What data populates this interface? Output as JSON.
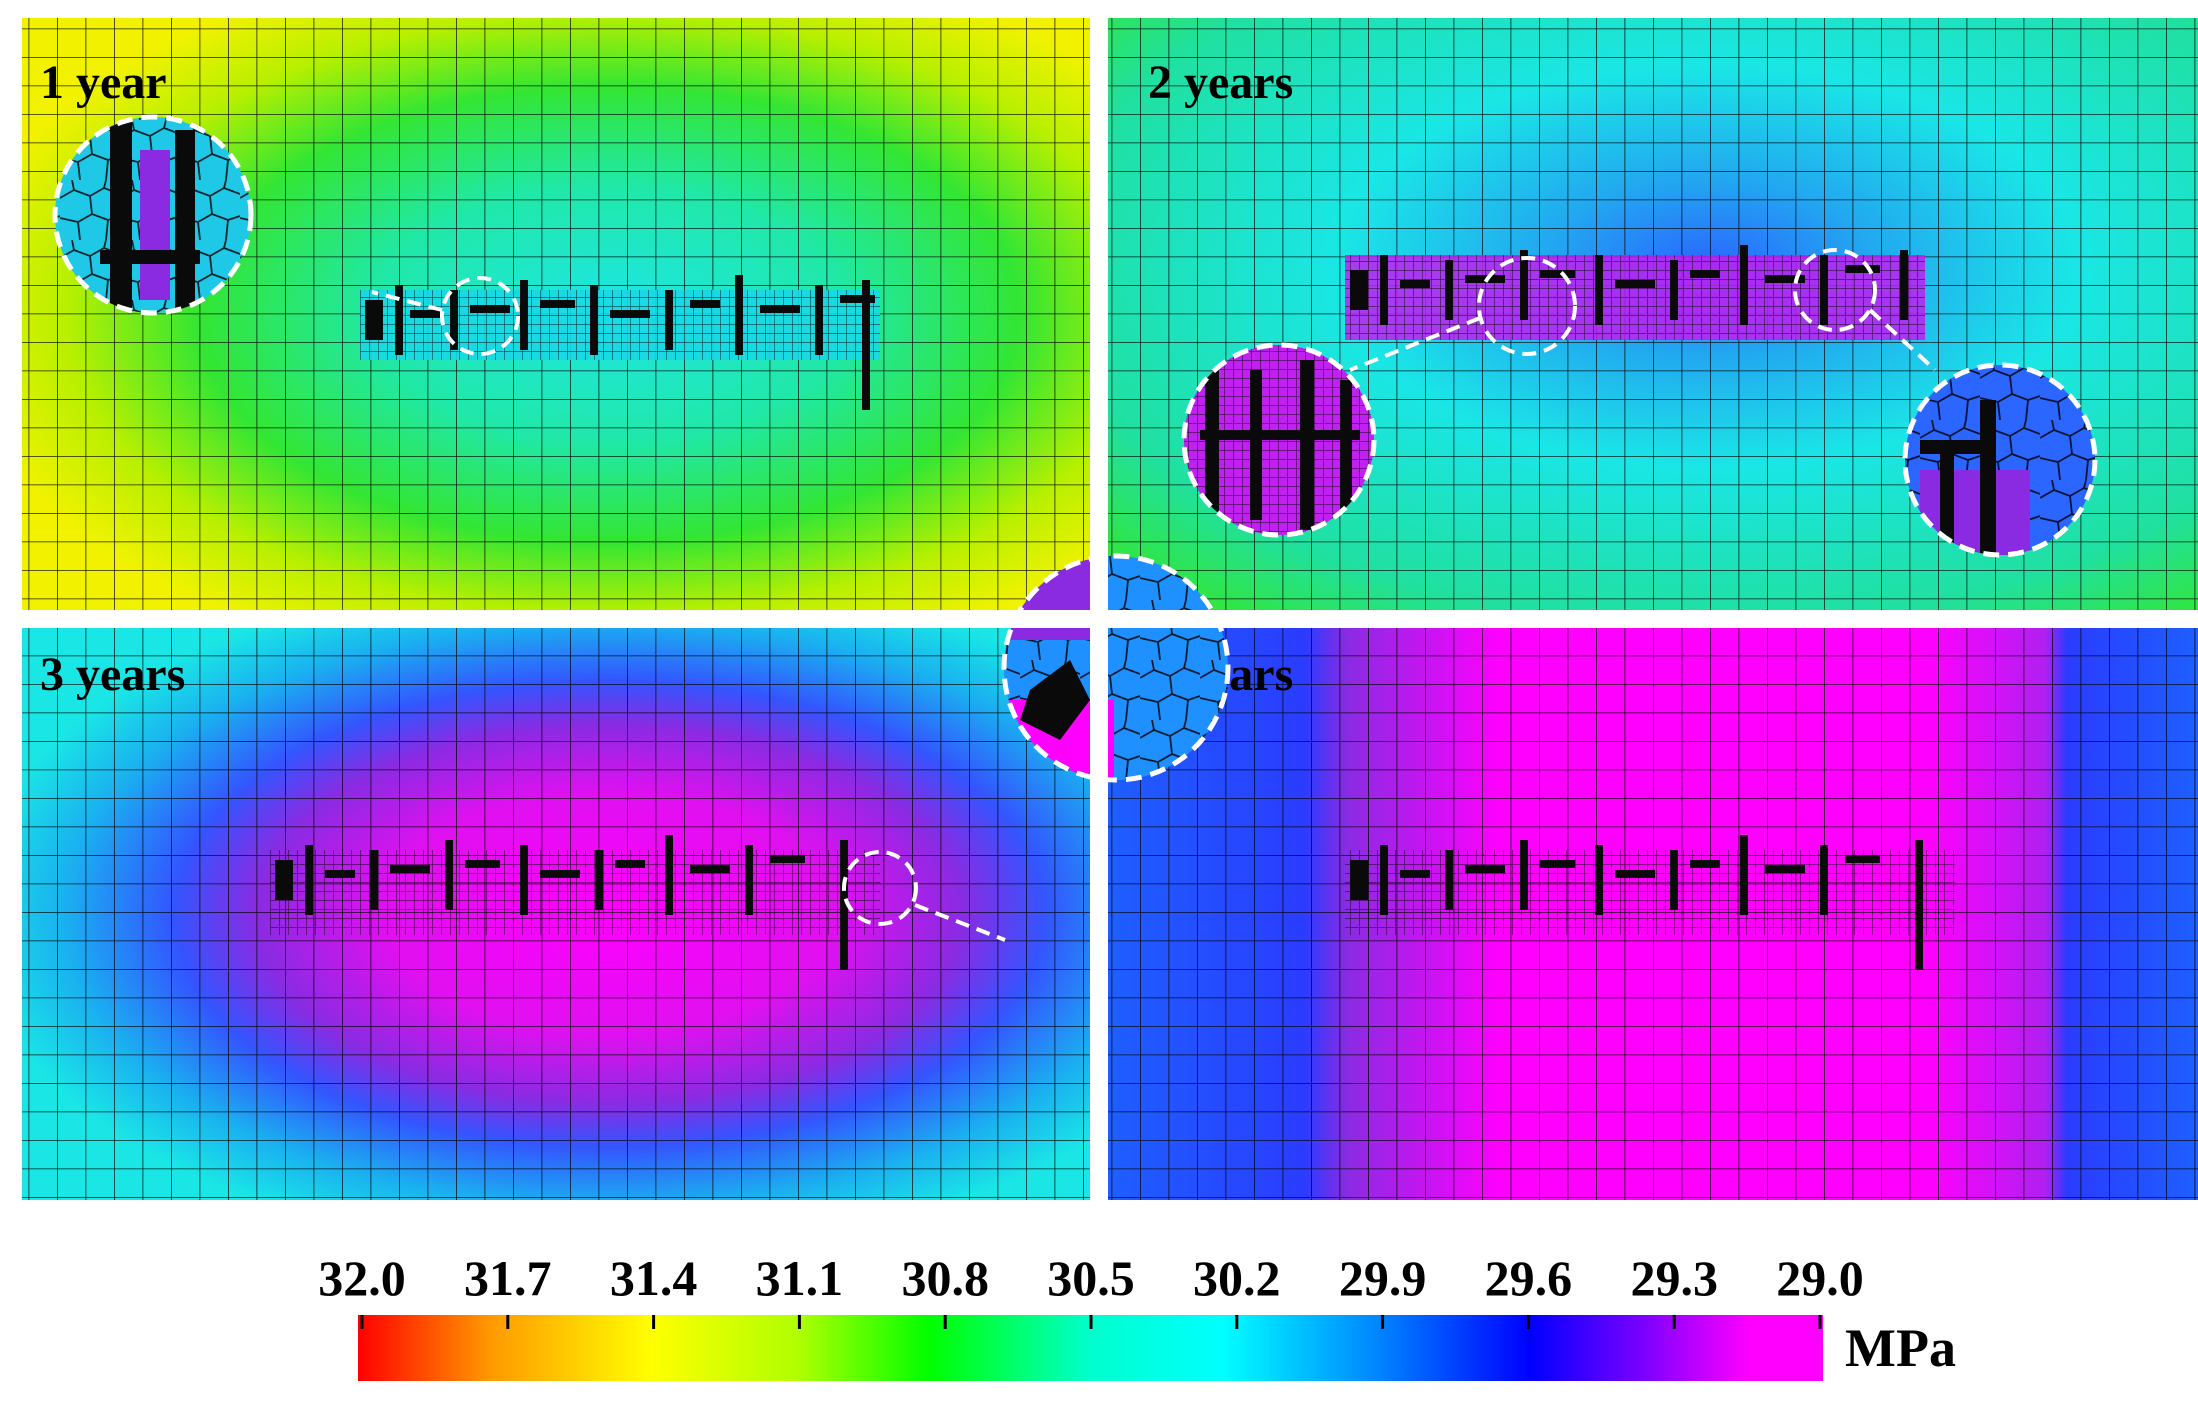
{
  "panels": [
    {
      "label": "1 year"
    },
    {
      "label": "2 years"
    },
    {
      "label": "3 years"
    },
    {
      "label": "4 years"
    }
  ],
  "colorbar": {
    "ticks": [
      "32.0",
      "31.7",
      "31.4",
      "31.1",
      "30.8",
      "30.5",
      "30.2",
      "29.9",
      "29.6",
      "29.3",
      "29.0"
    ],
    "unit": "MPa",
    "range": [
      32.0,
      29.0
    ],
    "colors": [
      "#ff0000",
      "#ff9900",
      "#ffff00",
      "#b0ff00",
      "#00ff00",
      "#00ffcc",
      "#00ffff",
      "#0080ff",
      "#0000ff",
      "#8000ff",
      "#ff00ff",
      "#ff00ff"
    ]
  },
  "colors": {
    "yellow": "#f2f200",
    "green": "#33e633",
    "cyan": "#1ae6e6",
    "blue": "#2a66ff",
    "purple": "#8a2be2",
    "magenta": "#ff00ff",
    "mesh": "#000000",
    "divider": "#ffffff"
  }
}
